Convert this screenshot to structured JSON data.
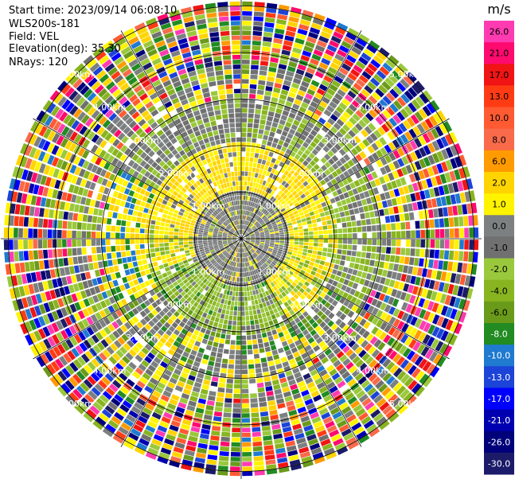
{
  "header": {
    "start_time": "Start time: 2023/09/14 06:08:10",
    "instrument": "WLS200s-181",
    "field": "Field: VEL",
    "elevation": "Elevation(deg): 35.30",
    "nrays": "NRays: 120"
  },
  "chart_data": {
    "type": "heatmap",
    "projection": "polar-ppi",
    "field": "VEL",
    "n_rays": 120,
    "range_rings_km": [
      1.0,
      2.0,
      3.0,
      4.0,
      5.0
    ],
    "ring_labels": [
      "1.00km",
      "2.00km",
      "3.00km",
      "4.00km",
      "5.00km"
    ],
    "spokes_deg_step": 30,
    "colorbar": {
      "unit": "m/s",
      "ticks": [
        "26.0",
        "21.0",
        "17.0",
        "13.0",
        "10.0",
        "8.0",
        "6.0",
        "2.0",
        "1.0",
        "0.0",
        "-1.0",
        "-2.0",
        "-4.0",
        "-6.0",
        "-8.0",
        "-10.0",
        "-13.0",
        "-17.0",
        "-21.0",
        "-26.0",
        "-30.0"
      ],
      "colors": [
        "#ff3bb2",
        "#ff0a6e",
        "#f01414",
        "#ff3b14",
        "#ff5a32",
        "#f86a4a",
        "#ff9a00",
        "#ffd400",
        "#fff300",
        "#7c8080",
        "#707070",
        "#9ac83c",
        "#88b420",
        "#6a9a1a",
        "#228b22",
        "#1f7ad0",
        "#1c44d8",
        "#0000ff",
        "#0000b0",
        "#00007a",
        "#1b1b6a"
      ]
    }
  }
}
